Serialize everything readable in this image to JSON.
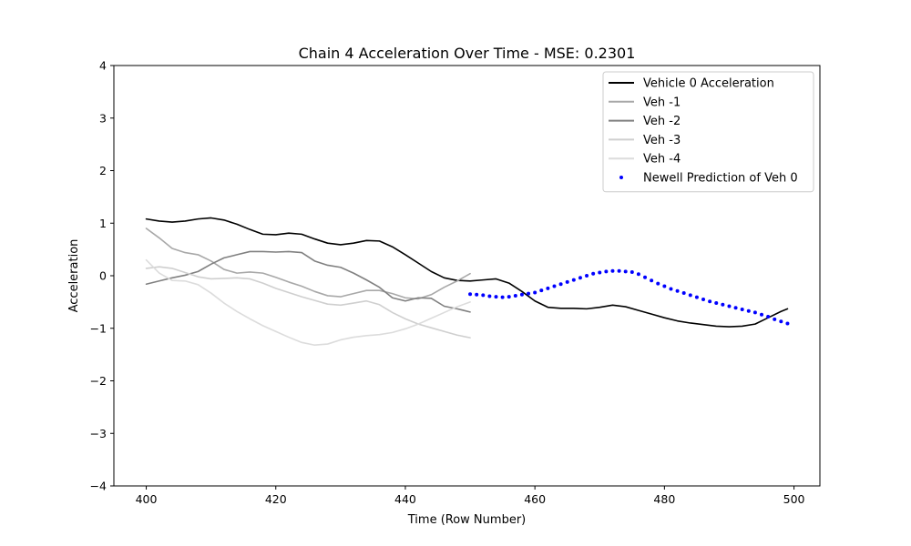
{
  "chart_data": {
    "type": "line",
    "title": "Chain 4 Acceleration Over Time - MSE: 0.2301",
    "xlabel": "Time (Row Number)",
    "ylabel": "Acceleration",
    "xlim": [
      395,
      504
    ],
    "ylim": [
      -4,
      4
    ],
    "x_ticks": [
      400,
      420,
      440,
      460,
      480,
      500
    ],
    "y_ticks": [
      -4,
      -3,
      -2,
      -1,
      0,
      1,
      2,
      3,
      4
    ],
    "y_tick_labels": [
      "−4",
      "−3",
      "−2",
      "−1",
      "0",
      "1",
      "2",
      "3",
      "4"
    ],
    "grid": false,
    "legend_position": "top-right",
    "series": [
      {
        "name": "Vehicle 0 Acceleration",
        "style": "line",
        "color": "#000000",
        "x": [
          400,
          402,
          404,
          406,
          408,
          410,
          412,
          414,
          416,
          418,
          420,
          422,
          424,
          426,
          428,
          430,
          432,
          434,
          436,
          438,
          440,
          442,
          444,
          446,
          448,
          450,
          452,
          454,
          456,
          458,
          460,
          462,
          464,
          466,
          468,
          470,
          472,
          474,
          476,
          478,
          480,
          482,
          484,
          486,
          488,
          490,
          492,
          494,
          496,
          498,
          499
        ],
        "values": [
          1.08,
          1.04,
          1.02,
          1.04,
          1.08,
          1.1,
          1.06,
          0.98,
          0.88,
          0.79,
          0.78,
          0.81,
          0.79,
          0.7,
          0.62,
          0.59,
          0.62,
          0.67,
          0.66,
          0.55,
          0.4,
          0.24,
          0.08,
          -0.04,
          -0.09,
          -0.1,
          -0.08,
          -0.06,
          -0.14,
          -0.3,
          -0.48,
          -0.6,
          -0.62,
          -0.62,
          -0.63,
          -0.6,
          -0.56,
          -0.59,
          -0.66,
          -0.73,
          -0.8,
          -0.86,
          -0.9,
          -0.93,
          -0.96,
          -0.97,
          -0.96,
          -0.92,
          -0.8,
          -0.68,
          -0.63
        ]
      },
      {
        "name": "Veh -1",
        "style": "line",
        "color": "#a8a8a8",
        "x": [
          400,
          402,
          404,
          406,
          408,
          410,
          412,
          414,
          416,
          418,
          420,
          422,
          424,
          426,
          428,
          430,
          432,
          434,
          436,
          438,
          440,
          442,
          444,
          446,
          448,
          450
        ],
        "values": [
          0.9,
          0.72,
          0.52,
          0.44,
          0.4,
          0.28,
          0.12,
          0.05,
          0.07,
          0.05,
          -0.03,
          -0.12,
          -0.2,
          -0.3,
          -0.38,
          -0.4,
          -0.34,
          -0.28,
          -0.28,
          -0.34,
          -0.42,
          -0.44,
          -0.36,
          -0.22,
          -0.1,
          0.04
        ]
      },
      {
        "name": "Veh -2",
        "style": "line",
        "color": "#808080",
        "x": [
          400,
          402,
          404,
          406,
          408,
          410,
          412,
          414,
          416,
          418,
          420,
          422,
          424,
          426,
          428,
          430,
          432,
          434,
          436,
          438,
          440,
          442,
          444,
          446,
          448,
          450
        ],
        "values": [
          -0.16,
          -0.1,
          -0.04,
          0.01,
          0.08,
          0.22,
          0.34,
          0.4,
          0.46,
          0.46,
          0.45,
          0.46,
          0.44,
          0.28,
          0.2,
          0.16,
          0.05,
          -0.08,
          -0.22,
          -0.42,
          -0.48,
          -0.42,
          -0.43,
          -0.58,
          -0.63,
          -0.69
        ]
      },
      {
        "name": "Veh -3",
        "style": "line",
        "color": "#cfcfcf",
        "x": [
          400,
          402,
          404,
          406,
          408,
          410,
          412,
          414,
          416,
          418,
          420,
          422,
          424,
          426,
          428,
          430,
          432,
          434,
          436,
          438,
          440,
          442,
          444,
          446,
          448,
          450
        ],
        "values": [
          0.14,
          0.17,
          0.14,
          0.06,
          -0.02,
          -0.06,
          -0.05,
          -0.04,
          -0.06,
          -0.14,
          -0.24,
          -0.32,
          -0.4,
          -0.47,
          -0.54,
          -0.56,
          -0.52,
          -0.48,
          -0.55,
          -0.7,
          -0.82,
          -0.92,
          -0.99,
          -1.06,
          -1.13,
          -1.18
        ]
      },
      {
        "name": "Veh -4",
        "style": "line",
        "color": "#dcdcdc",
        "x": [
          400,
          402,
          404,
          406,
          408,
          410,
          412,
          414,
          416,
          418,
          420,
          422,
          424,
          426,
          428,
          430,
          432,
          434,
          436,
          438,
          440,
          442,
          444,
          446,
          448,
          450
        ],
        "values": [
          0.3,
          0.05,
          -0.09,
          -0.1,
          -0.17,
          -0.33,
          -0.52,
          -0.68,
          -0.82,
          -0.95,
          -1.06,
          -1.17,
          -1.27,
          -1.32,
          -1.3,
          -1.22,
          -1.17,
          -1.14,
          -1.12,
          -1.08,
          -1.01,
          -0.92,
          -0.81,
          -0.7,
          -0.59,
          -0.5
        ]
      },
      {
        "name": "Newell Prediction of Veh 0",
        "style": "points",
        "color": "#0000ff",
        "x": [
          450,
          451,
          452,
          453,
          454,
          455,
          456,
          457,
          458,
          459,
          460,
          461,
          462,
          463,
          464,
          465,
          466,
          467,
          468,
          469,
          470,
          471,
          472,
          473,
          474,
          475,
          476,
          477,
          478,
          479,
          480,
          481,
          482,
          483,
          484,
          485,
          486,
          487,
          488,
          489,
          490,
          491,
          492,
          493,
          494,
          495,
          496,
          497,
          498,
          499
        ],
        "values": [
          -0.35,
          -0.36,
          -0.37,
          -0.39,
          -0.4,
          -0.41,
          -0.4,
          -0.38,
          -0.36,
          -0.34,
          -0.32,
          -0.28,
          -0.24,
          -0.2,
          -0.16,
          -0.12,
          -0.08,
          -0.04,
          0.0,
          0.04,
          0.06,
          0.08,
          0.09,
          0.09,
          0.08,
          0.07,
          0.03,
          -0.03,
          -0.09,
          -0.15,
          -0.2,
          -0.25,
          -0.29,
          -0.33,
          -0.37,
          -0.41,
          -0.45,
          -0.49,
          -0.52,
          -0.55,
          -0.58,
          -0.61,
          -0.64,
          -0.67,
          -0.7,
          -0.74,
          -0.78,
          -0.83,
          -0.87,
          -0.91
        ]
      }
    ]
  }
}
